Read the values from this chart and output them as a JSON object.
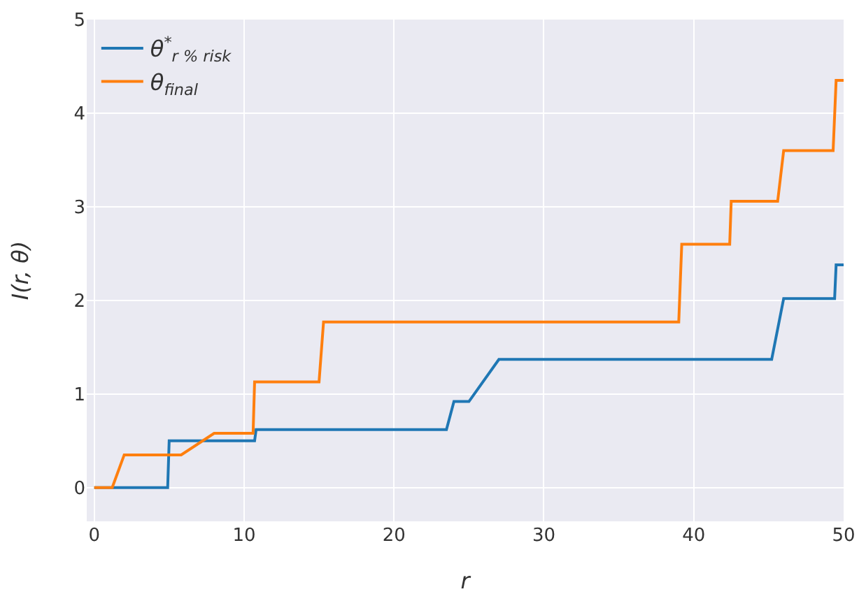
{
  "chart_data": {
    "type": "line",
    "xlabel": "r",
    "ylabel": "I(r, θ)",
    "xlim": [
      -0.5,
      50
    ],
    "xticks": [
      0,
      10,
      20,
      30,
      40,
      50
    ],
    "ylim": [
      -0.36,
      5
    ],
    "yticks": [
      0,
      1,
      2,
      3,
      4,
      5
    ],
    "grid": true,
    "legend": "top left",
    "line_style": "solid",
    "marker": "none",
    "series": [
      {
        "name": "θ$^{*}$$_{r % risk}$",
        "color": "#1f77b4",
        "x": [
          0,
          4.9,
          5,
          10.7,
          10.8,
          23.5,
          24,
          25,
          27,
          45.2,
          46,
          49.4,
          49.5,
          50
        ],
        "values": [
          0,
          0,
          0.5,
          0.5,
          0.62,
          0.62,
          0.92,
          0.92,
          1.37,
          1.37,
          2.02,
          2.02,
          2.38,
          2.38
        ]
      },
      {
        "name": "θ$_{final}$",
        "color": "#ff7f0e",
        "x": [
          0,
          1.2,
          2,
          5.8,
          8,
          10.6,
          10.7,
          15,
          15.3,
          39,
          39.2,
          42.4,
          42.5,
          45.6,
          46,
          49.3,
          49.5,
          50
        ],
        "values": [
          0,
          0,
          0.35,
          0.35,
          0.58,
          0.58,
          1.13,
          1.13,
          1.77,
          1.77,
          2.6,
          2.6,
          3.06,
          3.06,
          3.6,
          3.6,
          4.35,
          4.35
        ]
      }
    ]
  }
}
